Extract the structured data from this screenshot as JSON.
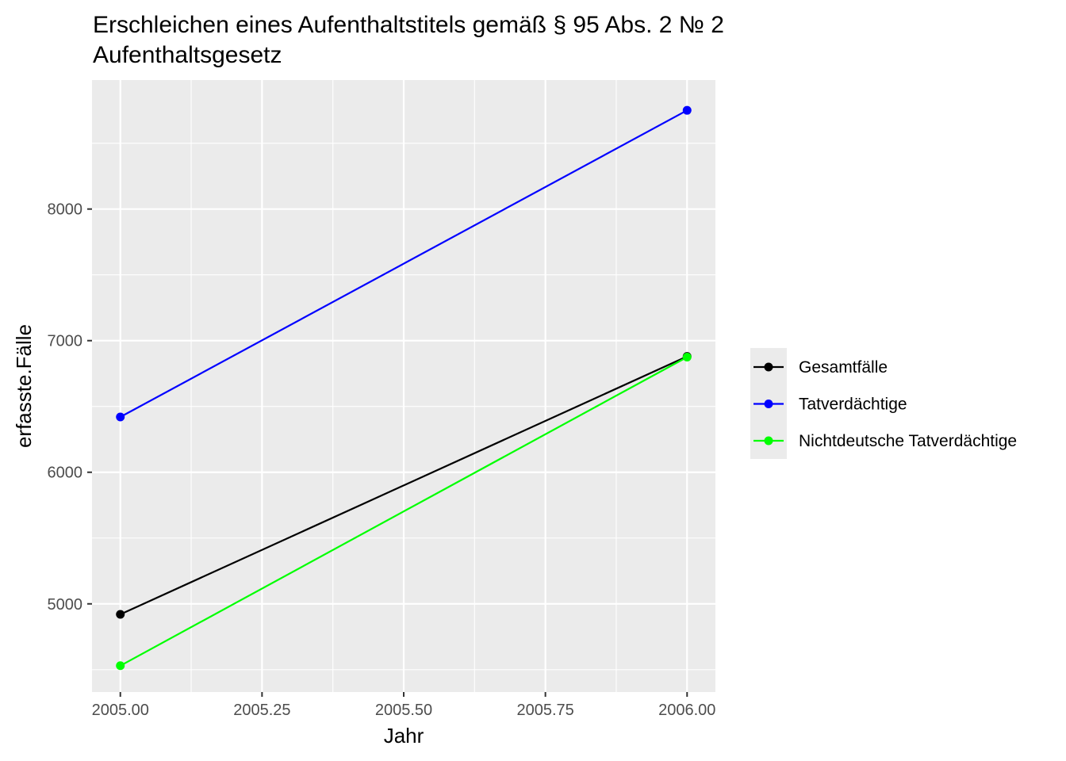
{
  "chart_data": {
    "type": "line",
    "title": "Erschleichen eines Aufenthaltstitels gemäß § 95 Abs. 2 № 2 Aufenthaltsgesetz",
    "title_lines": [
      "Erschleichen eines Aufenthaltstitels gemäß § 95 Abs. 2 № 2",
      "Aufenthaltsgesetz"
    ],
    "xlabel": "Jahr",
    "ylabel": "erfasste.Fälle",
    "x": [
      2005,
      2006
    ],
    "xlim": [
      2004.95,
      2006.05
    ],
    "ylim": [
      4330,
      8980
    ],
    "x_ticks": [
      2005.0,
      2005.25,
      2005.5,
      2005.75,
      2006.0
    ],
    "x_tick_labels": [
      "2005.00",
      "2005.25",
      "2005.50",
      "2005.75",
      "2006.00"
    ],
    "y_ticks": [
      5000,
      6000,
      7000,
      8000
    ],
    "y_tick_labels": [
      "5000",
      "6000",
      "7000",
      "8000"
    ],
    "grid": true,
    "legend_position": "right",
    "series": [
      {
        "name": "Gesamtfälle",
        "color": "#000000",
        "values": [
          4920,
          6880
        ]
      },
      {
        "name": "Tatverdächtige",
        "color": "#0000ff",
        "values": [
          6420,
          8750
        ]
      },
      {
        "name": "Nichtdeutsche Tatverdächtige",
        "color": "#00ff00",
        "values": [
          4530,
          6875
        ]
      }
    ]
  }
}
